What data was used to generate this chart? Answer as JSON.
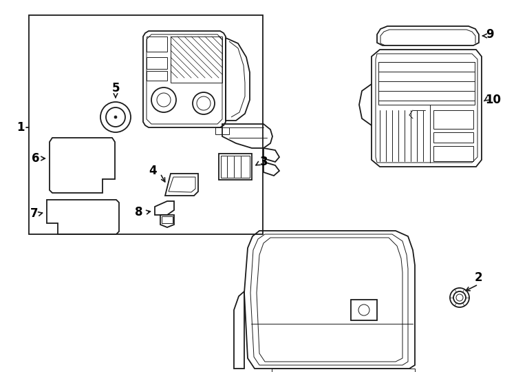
{
  "bg_color": "#ffffff",
  "line_color": "#1a1a1a",
  "lw": 1.3,
  "tlw": 0.7,
  "fig_width": 7.34,
  "fig_height": 5.4
}
